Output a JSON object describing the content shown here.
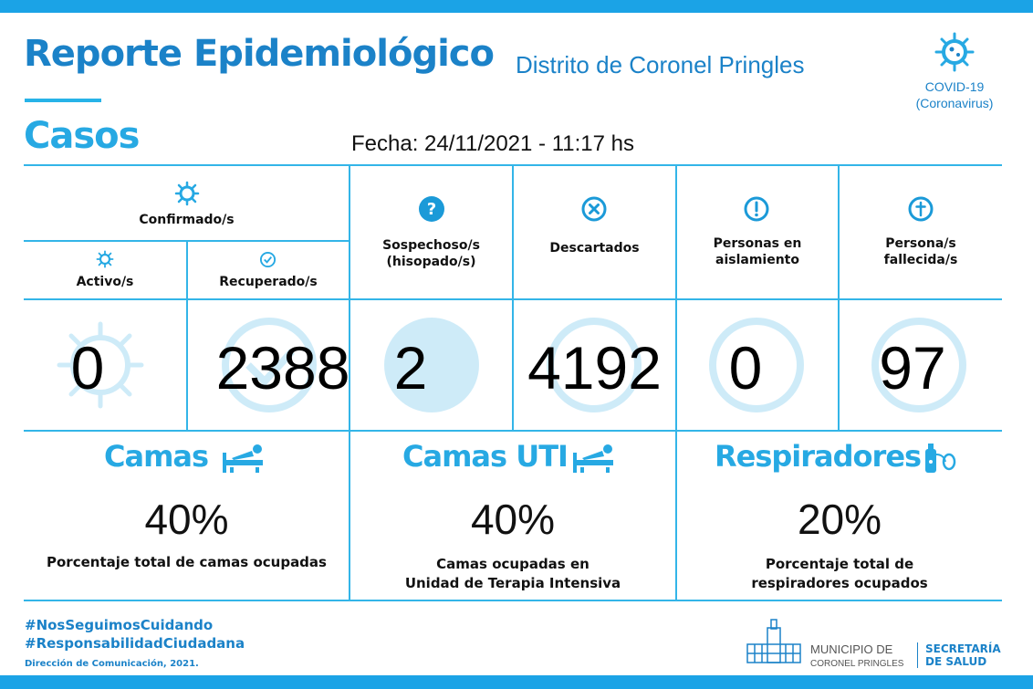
{
  "header": {
    "title": "Reporte Epidemiológico",
    "subtitle": "Distrito de Coronel Pringles",
    "section": "Casos",
    "date": "Fecha:  24/11/2021 - 11:17 hs",
    "covid_line1": "COVID-19",
    "covid_line2": "(Coronavirus)"
  },
  "columns": {
    "confirmed": "Confirmado/s",
    "active": "Activo/s",
    "recovered": "Recuperado/s",
    "suspected_1": "Sospechoso/s",
    "suspected_2": "(hisopado/s)",
    "discarded": "Descartados",
    "isolation_1": "Personas en",
    "isolation_2": "aislamiento",
    "deceased_1": "Persona/s",
    "deceased_2": "fallecida/s"
  },
  "values": {
    "active": "0",
    "recovered": "2388",
    "suspected": "2",
    "discarded": "4192",
    "isolation": "0",
    "deceased": "97"
  },
  "capacity": {
    "beds_title": "Camas",
    "beds_pct": "40%",
    "beds_desc": "Porcentaje total de camas ocupadas",
    "icu_title": "Camas UTI",
    "icu_pct": "40%",
    "icu_desc_1": "Camas ocupadas en",
    "icu_desc_2": "Unidad de Terapia Intensiva",
    "resp_title": "Respiradores",
    "resp_pct": "20%",
    "resp_desc_1": "Porcentaje total de",
    "resp_desc_2": "respiradores ocupados"
  },
  "footer": {
    "hashtag_1": "#NosSeguimosCuidando",
    "hashtag_2": "#ResponsabilidadCiudadana",
    "credit": "Dirección de Comunicación, 2021.",
    "muni_1": "MUNICIPIO DE",
    "muni_2": "CORONEL PRINGLES",
    "sec_1": "SECRETARÍA",
    "sec_2": "DE SALUD"
  },
  "colors": {
    "primary": "#1b82c8",
    "accent": "#27a9e3",
    "lines": "#33b5e8"
  },
  "icons": [
    "virus-icon",
    "check-icon",
    "question-icon",
    "x-circle-icon",
    "exclamation-icon",
    "cross-icon",
    "bed-icon",
    "respirator-icon"
  ]
}
